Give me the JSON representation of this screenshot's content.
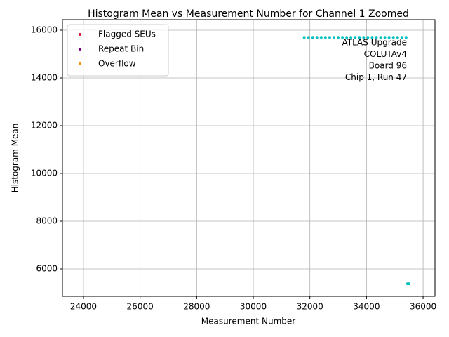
{
  "chart_data": {
    "type": "scatter",
    "title": "Histogram Mean vs Measurement Number for Channel 1 Zoomed",
    "xlabel": "Measurement Number",
    "ylabel": "Histogram Mean",
    "xlim": [
      23257,
      36420
    ],
    "ylim": [
      4853,
      16441
    ],
    "xticks": [
      24000,
      26000,
      28000,
      30000,
      32000,
      34000,
      36000
    ],
    "yticks": [
      6000,
      8000,
      10000,
      12000,
      14000,
      16000
    ],
    "grid": true,
    "legend": "upper left",
    "annotation": [
      "ATLAS Upgrade",
      "COLUTAv4",
      "Board 96",
      "Chip 1, Run 47"
    ],
    "series": [
      {
        "color": "#00bfbf",
        "x": [
          31800,
          31950,
          32100,
          32250,
          32400,
          32550,
          32700,
          32850,
          33000,
          33150,
          33300,
          33450,
          33600,
          33750,
          33900,
          34050,
          34200,
          34350,
          34500,
          34650,
          34800,
          34950,
          35100,
          35250,
          35400,
          35450,
          35500
        ],
        "values": [
          15700,
          15700,
          15700,
          15700,
          15700,
          15700,
          15700,
          15700,
          15700,
          15700,
          15700,
          15700,
          15700,
          15700,
          15700,
          15700,
          15700,
          15700,
          15700,
          15700,
          15700,
          15700,
          15700,
          15700,
          15700,
          5380,
          5380
        ]
      },
      {
        "name": "Flagged SEUs",
        "color": "#dc143c",
        "x": [],
        "values": []
      },
      {
        "name": "Repeat Bin",
        "color": "#800080",
        "x": [],
        "values": []
      },
      {
        "name": "Overflow",
        "color": "#ff8c00",
        "x": [],
        "values": []
      }
    ]
  }
}
